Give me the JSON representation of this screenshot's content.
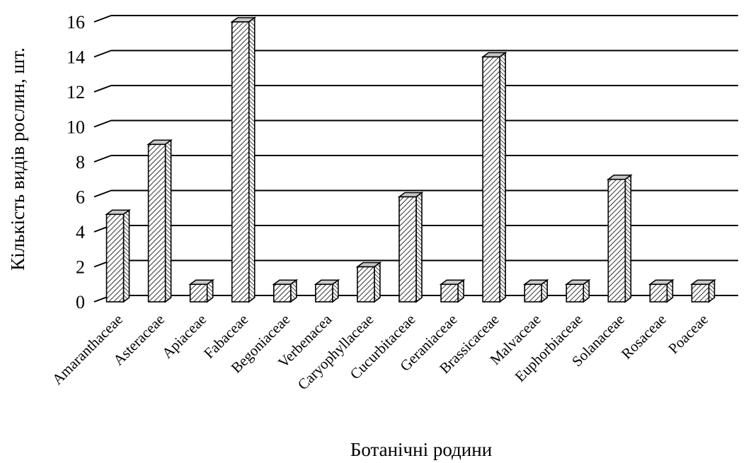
{
  "chart_data": {
    "type": "bar",
    "title": "",
    "xlabel": "Ботанічні родини",
    "ylabel": "Кількість видів рослин, шт.",
    "ylim": [
      0,
      16
    ],
    "yticks": [
      0,
      2,
      4,
      6,
      8,
      10,
      12,
      14,
      16
    ],
    "grid": true,
    "style": "3d-hatched",
    "categories": [
      "Amaranthaceae",
      "Asteraceae",
      "Apiaceae",
      "Fabaceae",
      "Begoniaceae",
      "Verbenacea",
      "Caryophyllaceae",
      "Cucurbitaceae",
      "Geraniaceae",
      "Brassicaceae",
      "Malvaceae",
      "Euphorbiaceae",
      "Solanaceae",
      "Rosaceae",
      "Poaceae"
    ],
    "values": [
      5,
      9,
      1,
      16,
      1,
      1,
      2,
      6,
      1,
      14,
      1,
      1,
      7,
      1,
      1
    ]
  }
}
